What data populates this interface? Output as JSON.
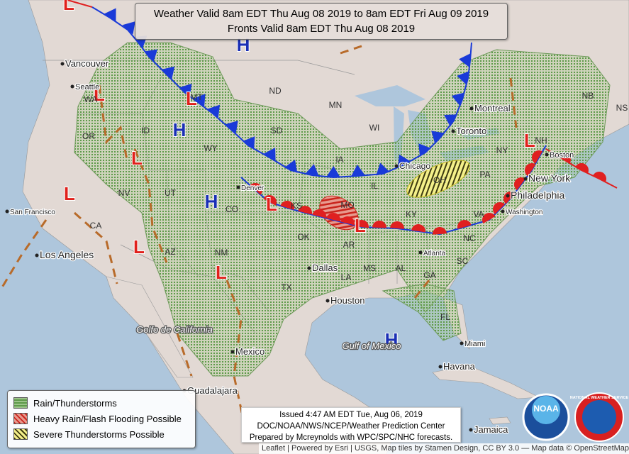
{
  "header": {
    "line1": "Weather Valid 8am EDT Thu Aug 08 2019 to 8am EDT Fri Aug 09 2019",
    "line2": "Fronts Valid 8am EDT Thu Aug 08 2019"
  },
  "legend": {
    "items": [
      "Rain/Thunderstorms",
      "Heavy Rain/Flash Flooding Possible",
      "Severe Thunderstorms Possible"
    ]
  },
  "issued": {
    "lines": [
      "Issued 4:47 AM EDT Tue, Aug 06, 2019",
      "DOC/NOAA/NWS/NCEP/Weather Prediction Center",
      "Prepared by Mcreynolds with WPC/SPC/NHC forecasts."
    ]
  },
  "attribution": "Leaflet | Powered by Esri | USGS, Map tiles by Stamen Design, CC BY 3.0 — Map data © OpenStreetMap",
  "logos": [
    "NOAA",
    "NATIONAL WEATHER SERVICE"
  ],
  "map": {
    "pressure_centers": [
      "L",
      "L",
      "L",
      "H",
      "L",
      "L",
      "H",
      "L",
      "L",
      "L",
      "L",
      "L",
      "H",
      "H"
    ],
    "cities": [
      "Vancouver",
      "Seattle",
      "San Francisco",
      "Los Angeles",
      "Denver",
      "Dallas",
      "Houston",
      "Atlanta",
      "Chicago",
      "Toronto",
      "Montreal",
      "Philadelphia",
      "New York",
      "Boston",
      "Washington",
      "Miami",
      "Havana",
      "Mexico",
      "Guadalajara",
      "Jamaica"
    ],
    "regions": [
      "WA",
      "OR",
      "ID",
      "MT",
      "WY",
      "ND",
      "SD",
      "MN",
      "WI",
      "IA",
      "KS",
      "CO",
      "UT",
      "NV",
      "CA",
      "AZ",
      "NM",
      "TX",
      "OK",
      "MO",
      "AR",
      "LA",
      "MS",
      "AL",
      "GA",
      "FL",
      "SC",
      "NC",
      "KY",
      "IL",
      "OH",
      "PA",
      "NY",
      "VA",
      "NB",
      "NS",
      "NH",
      "Golfo de California",
      "Gulf of Mexico"
    ]
  }
}
